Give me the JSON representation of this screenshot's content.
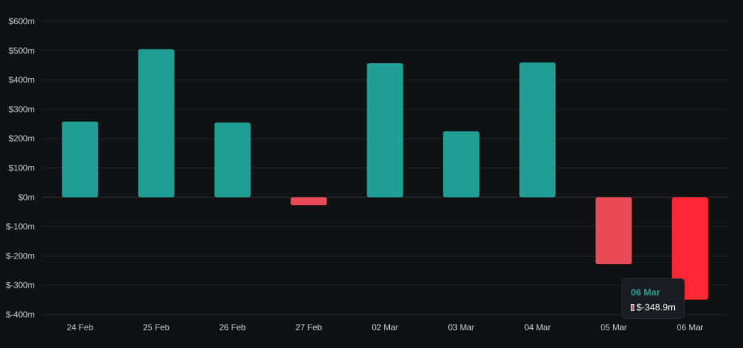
{
  "chart_data": {
    "type": "bar",
    "categories": [
      "24 Feb",
      "25 Feb",
      "26 Feb",
      "27 Feb",
      "02 Mar",
      "03 Mar",
      "04 Mar",
      "05 Mar",
      "06 Mar"
    ],
    "values": [
      258,
      505,
      255,
      -27,
      457,
      225,
      460,
      -228,
      -348.9
    ],
    "ylim": [
      -400,
      600
    ],
    "yticks": [
      600,
      500,
      400,
      300,
      200,
      100,
      0,
      -100,
      -200,
      -300,
      -400
    ],
    "ytick_labels": [
      "$600m",
      "$500m",
      "$400m",
      "$300m",
      "$200m",
      "$100m",
      "$0m",
      "$-100m",
      "$-200m",
      "$-300m",
      "$-400m"
    ],
    "grid": true,
    "colors": {
      "positive": "#1f9e94",
      "negative": "#e84b58",
      "highlight": "#ff2733",
      "background": "#101113",
      "grid": "#26282c"
    },
    "highlighted_index": 8
  },
  "tooltip": {
    "title": "06 Mar",
    "value": "$-348.9m"
  }
}
